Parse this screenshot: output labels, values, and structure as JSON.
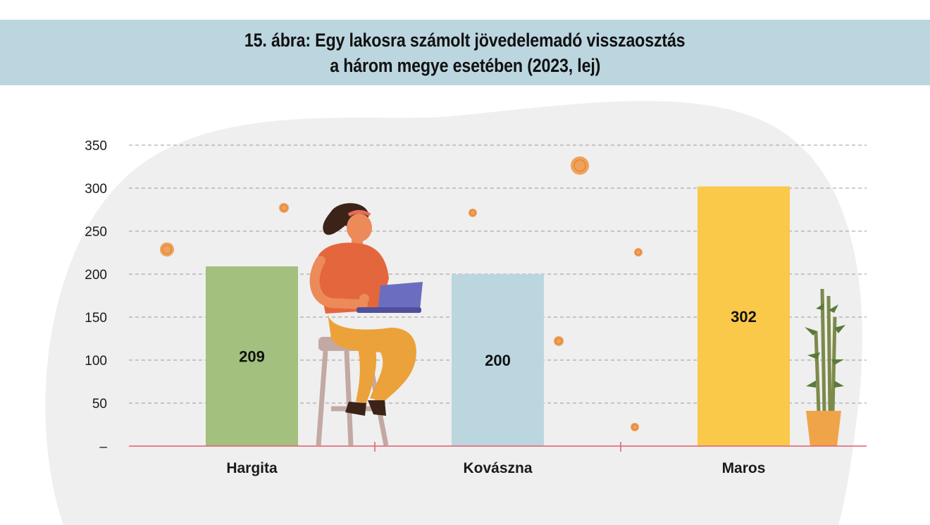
{
  "title": {
    "line1": "15. ábra: Egy lakosra számolt jövedelemadó visszaosztás",
    "line2": "a három megye esetében (2023, lej)"
  },
  "chart_data": {
    "type": "bar",
    "categories": [
      "Hargita",
      "Kovászna",
      "Maros"
    ],
    "values": [
      209,
      200,
      302
    ],
    "value_labels": [
      "209",
      "200",
      "302"
    ],
    "colors": [
      "#a3c07f",
      "#bcd6e0",
      "#fac94a"
    ],
    "ylim": [
      0,
      350
    ],
    "yticks": [
      0,
      50,
      100,
      150,
      200,
      250,
      300,
      350
    ],
    "ytick_labels": [
      "–",
      "50",
      "100",
      "150",
      "200",
      "250",
      "300",
      "350"
    ],
    "grid": true,
    "axis_color": "#e35d6a"
  },
  "colors": {
    "title_band": "#bcd6e0",
    "blob": "#efefef",
    "coin": "#f0a25a"
  },
  "decorations": [
    "woman-with-laptop-illustration",
    "bamboo-plant-icon",
    "coin-icon"
  ]
}
